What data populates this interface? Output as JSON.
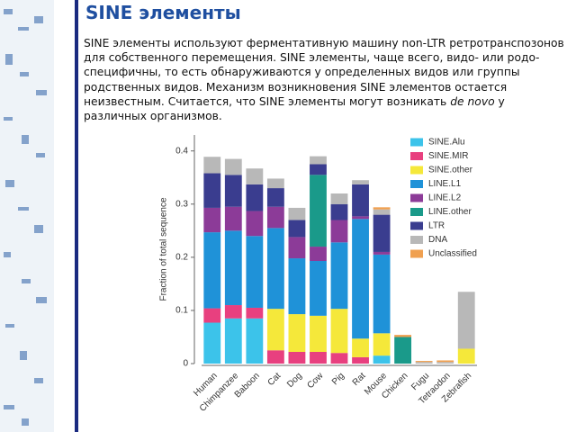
{
  "slide": {
    "title": "SINE элементы",
    "text_before": "SINE элементы используют ферментативную машину non-LTR ретротранспозонов для собственного перемещения. SINE элементы, чаще всего, видо- или родо-специфичны, то есть обнаруживаются у определенных видов или группы родственных видов. Механизм возникновения SINE элементов остается неизвестным. Считается, что SINE элементы могут возникать",
    "text_italic": "de novo",
    "text_after": "у различных организмов."
  },
  "chart_data": {
    "type": "stacked-bar",
    "y_label": "Fraction of total sequence",
    "categories": [
      "Human",
      "Chimpanzee",
      "Baboon",
      "Cat",
      "Dog",
      "Cow",
      "Pig",
      "Rat",
      "Mouse",
      "Chicken",
      "Fugu",
      "Tetraodon",
      "Zebrafish"
    ],
    "series": [
      {
        "name": "SINE.Alu",
        "color": "#3cc3ea",
        "values": [
          0.077,
          0.085,
          0.085,
          0,
          0,
          0,
          0,
          0,
          0.015,
          0,
          0,
          0,
          0
        ]
      },
      {
        "name": "SINE.MIR",
        "color": "#e8407f",
        "values": [
          0.027,
          0.025,
          0.02,
          0.025,
          0.022,
          0.022,
          0.02,
          0.012,
          0,
          0,
          0,
          0,
          0
        ]
      },
      {
        "name": "SINE.other",
        "color": "#f5e83a",
        "values": [
          0,
          0,
          0,
          0.078,
          0.071,
          0.068,
          0.083,
          0.035,
          0.042,
          0,
          0,
          0,
          0.028
        ]
      },
      {
        "name": "LINE.L1",
        "color": "#1f92d8",
        "values": [
          0.143,
          0.14,
          0.135,
          0.152,
          0.105,
          0.103,
          0.125,
          0.225,
          0.148,
          0,
          0,
          0,
          0
        ]
      },
      {
        "name": "LINE.L2",
        "color": "#8c3b98",
        "values": [
          0.046,
          0.045,
          0.047,
          0.04,
          0.04,
          0.027,
          0.042,
          0.005,
          0.005,
          0,
          0,
          0,
          0
        ]
      },
      {
        "name": "LINE.other",
        "color": "#1a9a8a",
        "values": [
          0,
          0,
          0,
          0,
          0,
          0.135,
          0,
          0,
          0,
          0.05,
          0,
          0,
          0
        ]
      },
      {
        "name": "LTR",
        "color": "#3a3d8f",
        "values": [
          0.065,
          0.06,
          0.05,
          0.035,
          0.032,
          0.02,
          0.03,
          0.06,
          0.07,
          0,
          0,
          0,
          0
        ]
      },
      {
        "name": "DNA",
        "color": "#b8b8b8",
        "values": [
          0.031,
          0.03,
          0.03,
          0.018,
          0.023,
          0.015,
          0.02,
          0.008,
          0.01,
          0,
          0.003,
          0.003,
          0.107
        ]
      },
      {
        "name": "Unclassified",
        "color": "#f0a050",
        "values": [
          0,
          0,
          0,
          0,
          0,
          0,
          0,
          0,
          0.004,
          0.004,
          0.002,
          0.003,
          0
        ]
      }
    ],
    "ylim": [
      0,
      0.43
    ],
    "yticks": [
      0,
      0.1,
      0.2,
      0.3,
      0.4
    ]
  }
}
